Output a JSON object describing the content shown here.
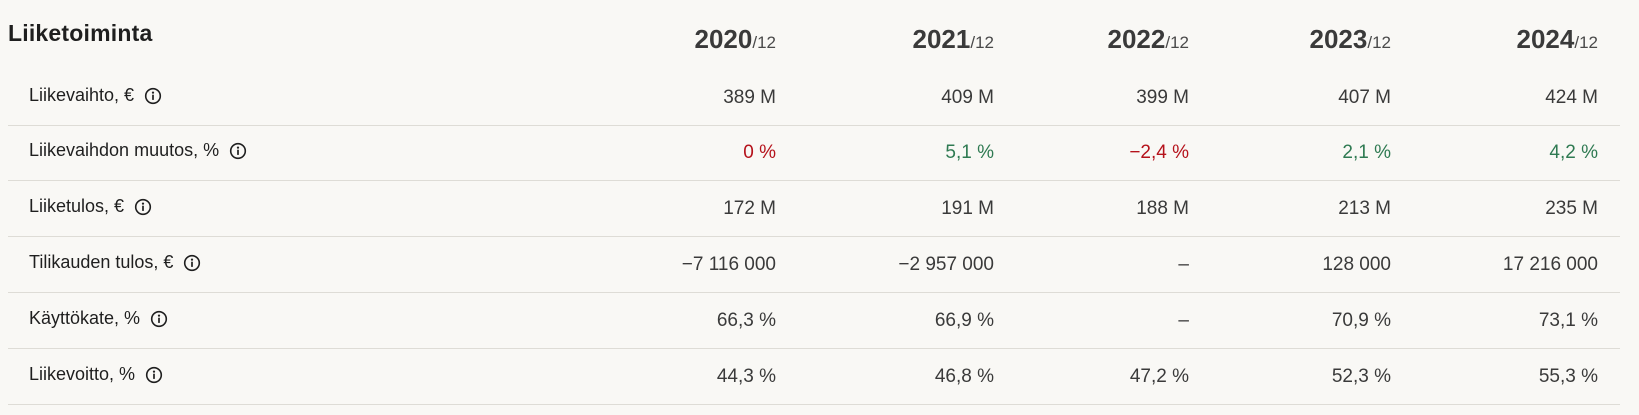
{
  "section": {
    "title": "Liiketoiminta"
  },
  "years": [
    {
      "year": "2020",
      "period": "/12"
    },
    {
      "year": "2021",
      "period": "/12"
    },
    {
      "year": "2022",
      "period": "/12"
    },
    {
      "year": "2023",
      "period": "/12"
    },
    {
      "year": "2024",
      "period": "/12"
    }
  ],
  "rows": [
    {
      "label": "Liikevaihto, €",
      "icon": "info-icon",
      "values": [
        "389 M",
        "409 M",
        "399 M",
        "407 M",
        "424 M"
      ],
      "tones": [
        "",
        "",
        "",
        "",
        ""
      ]
    },
    {
      "label": "Liikevaihdon muutos, %",
      "icon": "info-icon",
      "values": [
        "0 %",
        "5,1 %",
        "−2,4 %",
        "2,1 %",
        "4,2 %"
      ],
      "tones": [
        "neg",
        "pos",
        "neg",
        "pos",
        "pos"
      ]
    },
    {
      "label": "Liiketulos, €",
      "icon": "info-icon",
      "values": [
        "172 M",
        "191 M",
        "188 M",
        "213 M",
        "235 M"
      ],
      "tones": [
        "",
        "",
        "",
        "",
        ""
      ]
    },
    {
      "label": "Tilikauden tulos, €",
      "icon": "info-icon",
      "values": [
        "−7 116 000",
        "−2 957 000",
        "–",
        "128 000",
        "17 216 000"
      ],
      "tones": [
        "",
        "",
        "",
        "",
        ""
      ]
    },
    {
      "label": "Käyttökate, %",
      "icon": "info-icon",
      "values": [
        "66,3 %",
        "66,9 %",
        "–",
        "70,9 %",
        "73,1 %"
      ],
      "tones": [
        "",
        "",
        "",
        "",
        ""
      ]
    },
    {
      "label": "Liikevoitto, %",
      "icon": "info-icon",
      "values": [
        "44,3 %",
        "46,8 %",
        "47,2 %",
        "52,3 %",
        "55,3 %"
      ],
      "tones": [
        "",
        "",
        "",
        "",
        ""
      ]
    }
  ],
  "colors": {
    "negative": "#b5121b",
    "positive": "#2f7a52",
    "background": "#f9f8f5",
    "divider": "#dedcd6"
  }
}
